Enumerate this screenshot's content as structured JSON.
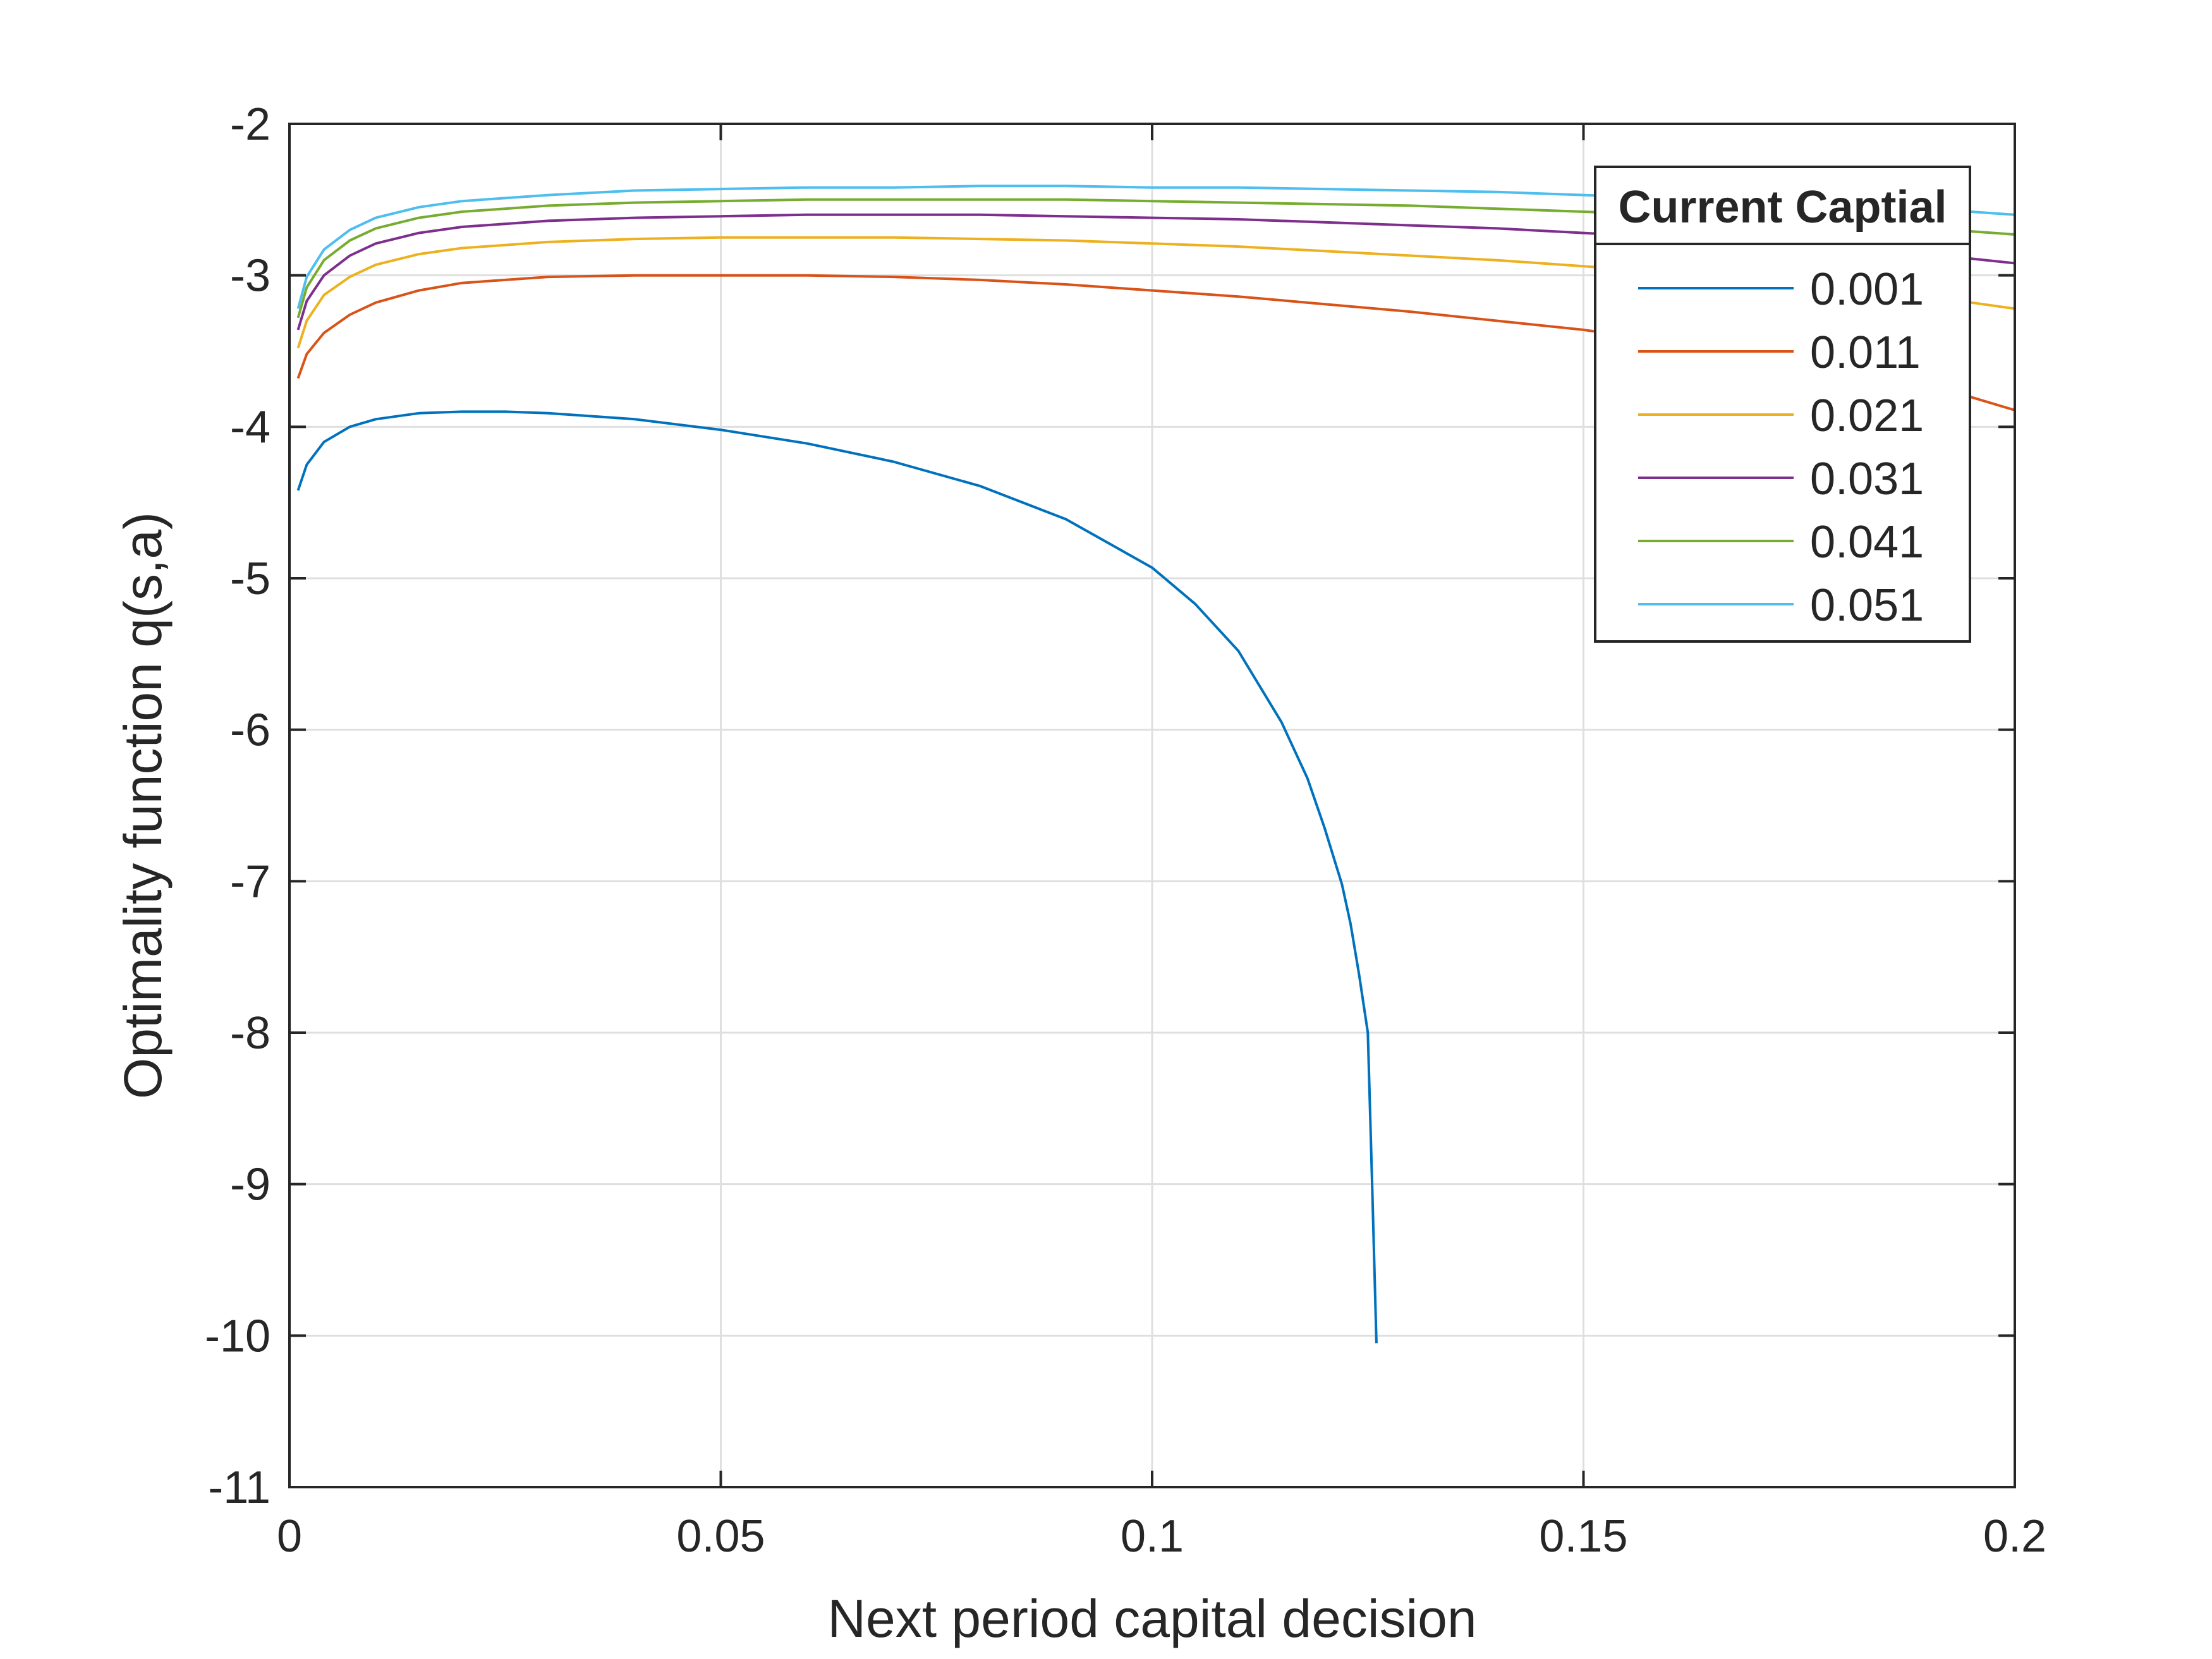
{
  "chart_data": {
    "type": "line",
    "title": "",
    "xlabel": "Next period capital decision",
    "ylabel": "Optimality function q(s,a)",
    "xlim": [
      0,
      0.2
    ],
    "ylim": [
      -11,
      -2
    ],
    "xticks": [
      0,
      0.05,
      0.1,
      0.15,
      0.2
    ],
    "xtick_labels": [
      "0",
      "0.05",
      "0.1",
      "0.15",
      "0.2"
    ],
    "yticks": [
      -11,
      -10,
      -9,
      -8,
      -7,
      -6,
      -5,
      -4,
      -3,
      -2
    ],
    "ytick_labels": [
      "-11",
      "-10",
      "-9",
      "-8",
      "-7",
      "-6",
      "-5",
      "-4",
      "-3",
      "-2"
    ],
    "grid": true,
    "legend": {
      "title": "Current Captial",
      "position": "top-right"
    },
    "series": [
      {
        "name": "0.001",
        "color": "#0072BD",
        "x": [
          0.001,
          0.002,
          0.004,
          0.007,
          0.01,
          0.015,
          0.02,
          0.025,
          0.03,
          0.04,
          0.05,
          0.06,
          0.07,
          0.08,
          0.09,
          0.1,
          0.105,
          0.11,
          0.115,
          0.118,
          0.12,
          0.122,
          0.123,
          0.124,
          0.125,
          0.1255,
          0.126
        ],
        "values": [
          -4.42,
          -4.25,
          -4.1,
          -4.0,
          -3.95,
          -3.91,
          -3.9,
          -3.9,
          -3.91,
          -3.95,
          -4.02,
          -4.11,
          -4.23,
          -4.39,
          -4.61,
          -4.93,
          -5.17,
          -5.48,
          -5.95,
          -6.32,
          -6.65,
          -7.02,
          -7.28,
          -7.62,
          -8.0,
          -9.0,
          -10.05
        ]
      },
      {
        "name": "0.011",
        "color": "#D95319",
        "x": [
          0.001,
          0.002,
          0.004,
          0.007,
          0.01,
          0.015,
          0.02,
          0.03,
          0.04,
          0.05,
          0.06,
          0.07,
          0.08,
          0.09,
          0.1,
          0.11,
          0.12,
          0.13,
          0.14,
          0.15,
          0.16,
          0.17,
          0.18,
          0.19,
          0.2
        ],
        "values": [
          -3.68,
          -3.52,
          -3.38,
          -3.26,
          -3.18,
          -3.1,
          -3.05,
          -3.01,
          -3.0,
          -3.0,
          -3.0,
          -3.01,
          -3.03,
          -3.06,
          -3.1,
          -3.14,
          -3.19,
          -3.24,
          -3.3,
          -3.36,
          -3.44,
          -3.52,
          -3.61,
          -3.72,
          -3.89
        ]
      },
      {
        "name": "0.021",
        "color": "#EDB120",
        "x": [
          0.001,
          0.002,
          0.004,
          0.007,
          0.01,
          0.015,
          0.02,
          0.03,
          0.04,
          0.05,
          0.06,
          0.07,
          0.08,
          0.09,
          0.1,
          0.11,
          0.12,
          0.13,
          0.14,
          0.15,
          0.16,
          0.17,
          0.18,
          0.19,
          0.2
        ],
        "values": [
          -3.48,
          -3.3,
          -3.13,
          -3.01,
          -2.93,
          -2.86,
          -2.82,
          -2.78,
          -2.76,
          -2.75,
          -2.75,
          -2.75,
          -2.76,
          -2.77,
          -2.79,
          -2.81,
          -2.84,
          -2.87,
          -2.9,
          -2.94,
          -2.98,
          -3.03,
          -3.08,
          -3.14,
          -3.22
        ]
      },
      {
        "name": "0.031",
        "color": "#7E2F8E",
        "x": [
          0.001,
          0.002,
          0.004,
          0.007,
          0.01,
          0.015,
          0.02,
          0.03,
          0.04,
          0.05,
          0.06,
          0.07,
          0.08,
          0.09,
          0.1,
          0.11,
          0.12,
          0.13,
          0.14,
          0.15,
          0.16,
          0.17,
          0.18,
          0.19,
          0.2
        ],
        "values": [
          -3.36,
          -3.17,
          -3.0,
          -2.87,
          -2.79,
          -2.72,
          -2.68,
          -2.64,
          -2.62,
          -2.61,
          -2.6,
          -2.6,
          -2.6,
          -2.61,
          -2.62,
          -2.63,
          -2.65,
          -2.67,
          -2.69,
          -2.72,
          -2.75,
          -2.78,
          -2.82,
          -2.86,
          -2.92
        ]
      },
      {
        "name": "0.041",
        "color": "#77AC30",
        "x": [
          0.001,
          0.002,
          0.004,
          0.007,
          0.01,
          0.015,
          0.02,
          0.03,
          0.04,
          0.05,
          0.06,
          0.07,
          0.08,
          0.09,
          0.1,
          0.11,
          0.12,
          0.13,
          0.14,
          0.15,
          0.16,
          0.17,
          0.18,
          0.19,
          0.2
        ],
        "values": [
          -3.28,
          -3.08,
          -2.9,
          -2.77,
          -2.69,
          -2.62,
          -2.58,
          -2.54,
          -2.52,
          -2.51,
          -2.5,
          -2.5,
          -2.5,
          -2.5,
          -2.51,
          -2.52,
          -2.53,
          -2.54,
          -2.56,
          -2.58,
          -2.6,
          -2.62,
          -2.65,
          -2.69,
          -2.73
        ]
      },
      {
        "name": "0.051",
        "color": "#4DBEEE",
        "x": [
          0.001,
          0.002,
          0.004,
          0.007,
          0.01,
          0.015,
          0.02,
          0.03,
          0.04,
          0.05,
          0.06,
          0.07,
          0.08,
          0.09,
          0.1,
          0.11,
          0.12,
          0.13,
          0.14,
          0.15,
          0.16,
          0.17,
          0.18,
          0.19,
          0.2
        ],
        "values": [
          -3.22,
          -3.01,
          -2.83,
          -2.7,
          -2.62,
          -2.55,
          -2.51,
          -2.47,
          -2.44,
          -2.43,
          -2.42,
          -2.42,
          -2.41,
          -2.41,
          -2.42,
          -2.42,
          -2.43,
          -2.44,
          -2.45,
          -2.47,
          -2.49,
          -2.51,
          -2.53,
          -2.56,
          -2.6
        ]
      }
    ]
  }
}
